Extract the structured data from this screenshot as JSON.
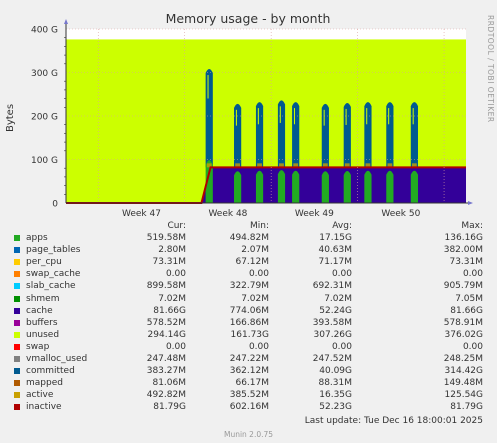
{
  "chart_data": {
    "type": "area",
    "title": "Memory usage - by month",
    "ylabel": "Bytes",
    "y_ticks": [
      "0",
      "100 G",
      "200 G",
      "300 G",
      "400 G"
    ],
    "y_tick_values": [
      0,
      100,
      200,
      300,
      400
    ],
    "ylim": [
      0,
      400
    ],
    "unit": "G",
    "x_ticks": [
      "Week 47",
      "Week 48",
      "Week 49",
      "Week 50"
    ],
    "x_range_days": [
      0,
      31
    ],
    "side_text": "RRDTOOL / TOBI OETIKER",
    "grid": true,
    "series_summary": {
      "unused_level": 376,
      "cache_level": 82,
      "inactive_level": 82,
      "ramp_start_day": 10.5,
      "ramp_end_day": 11.2,
      "spikes": [
        {
          "day": 11.1,
          "peak": 308
        },
        {
          "day": 13.3,
          "peak": 228
        },
        {
          "day": 15.0,
          "peak": 232
        },
        {
          "day": 16.7,
          "peak": 236
        },
        {
          "day": 17.8,
          "peak": 232
        },
        {
          "day": 20.1,
          "peak": 228
        },
        {
          "day": 21.8,
          "peak": 230
        },
        {
          "day": 23.4,
          "peak": 232
        },
        {
          "day": 25.1,
          "peak": 232
        },
        {
          "day": 27.0,
          "peak": 232
        }
      ]
    },
    "legend": {
      "headers": [
        "Cur:",
        "Min:",
        "Avg:",
        "Max:"
      ],
      "rows": [
        {
          "name": "apps",
          "color": "#22aa22",
          "cur": "519.58M",
          "min": "494.82M",
          "avg": "17.15G",
          "max": "136.16G"
        },
        {
          "name": "page_tables",
          "color": "#0066b3",
          "cur": "2.80M",
          "min": "2.07M",
          "avg": "40.63M",
          "max": "382.00M"
        },
        {
          "name": "per_cpu",
          "color": "#ffcc00",
          "cur": "73.31M",
          "min": "67.12M",
          "avg": "71.17M",
          "max": "73.31M"
        },
        {
          "name": "swap_cache",
          "color": "#ff8000",
          "cur": "0.00",
          "min": "0.00",
          "avg": "0.00",
          "max": "0.00"
        },
        {
          "name": "slab_cache",
          "color": "#00ccff",
          "cur": "899.58M",
          "min": "322.79M",
          "avg": "692.31M",
          "max": "905.79M"
        },
        {
          "name": "shmem",
          "color": "#008f00",
          "cur": "7.02M",
          "min": "7.02M",
          "avg": "7.02M",
          "max": "7.05M"
        },
        {
          "name": "cache",
          "color": "#330099",
          "cur": "81.66G",
          "min": "774.06M",
          "avg": "52.24G",
          "max": "81.66G"
        },
        {
          "name": "buffers",
          "color": "#990099",
          "cur": "578.52M",
          "min": "166.86M",
          "avg": "393.58M",
          "max": "578.91M"
        },
        {
          "name": "unused",
          "color": "#ccff00",
          "cur": "294.14G",
          "min": "161.73G",
          "avg": "307.26G",
          "max": "376.02G"
        },
        {
          "name": "swap",
          "color": "#ff0000",
          "cur": "0.00",
          "min": "0.00",
          "avg": "0.00",
          "max": "0.00"
        },
        {
          "name": "vmalloc_used",
          "color": "#808080",
          "cur": "247.48M",
          "min": "247.22M",
          "avg": "247.52M",
          "max": "248.25M"
        },
        {
          "name": "committed",
          "color": "#005a8f",
          "cur": "383.27M",
          "min": "362.12M",
          "avg": "40.09G",
          "max": "314.42G"
        },
        {
          "name": "mapped",
          "color": "#b05a00",
          "cur": "81.06M",
          "min": "66.17M",
          "avg": "88.31M",
          "max": "149.48M"
        },
        {
          "name": "active",
          "color": "#c8a000",
          "cur": "492.82M",
          "min": "385.52M",
          "avg": "16.35G",
          "max": "125.54G"
        },
        {
          "name": "inactive",
          "color": "#b00000",
          "cur": "81.79G",
          "min": "602.16M",
          "avg": "52.23G",
          "max": "81.79G"
        }
      ]
    }
  },
  "footer": {
    "last_update": "Last update: Tue Dec 16 18:00:01 2025",
    "munin": "Munin 2.0.75"
  }
}
